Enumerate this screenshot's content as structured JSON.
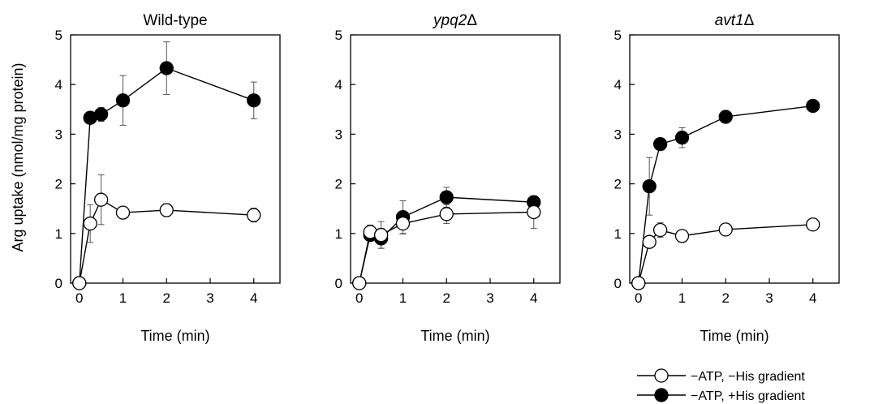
{
  "chart_data": [
    {
      "type": "line",
      "title": "Wild-type",
      "title_italic": false,
      "title_suffix": "",
      "xlabel": "Time (min)",
      "ylabel": "Arg uptake (nmol/mg protein)",
      "xlim": [
        -0.2,
        4.6
      ],
      "ylim": [
        0,
        5
      ],
      "xticks": [
        0,
        1,
        2,
        3,
        4
      ],
      "yticks": [
        0,
        1,
        2,
        3,
        4,
        5
      ],
      "grid": false,
      "series": [
        {
          "name": "−ATP, −His gradient",
          "marker": "open-circle",
          "x": [
            0,
            0.25,
            0.5,
            1,
            2,
            4
          ],
          "y": [
            0,
            1.2,
            1.68,
            1.42,
            1.47,
            1.37
          ],
          "err": [
            0,
            0.38,
            0.5,
            0.06,
            0.13,
            0.14
          ]
        },
        {
          "name": "−ATP, +His gradient",
          "marker": "filled-circle",
          "x": [
            0,
            0.25,
            0.5,
            1,
            2,
            4
          ],
          "y": [
            0,
            3.33,
            3.4,
            3.68,
            4.33,
            3.68
          ],
          "err": [
            0,
            0.1,
            0.14,
            0.5,
            0.53,
            0.37
          ]
        }
      ]
    },
    {
      "type": "line",
      "title": "ypq2",
      "title_italic": true,
      "title_suffix": "Δ",
      "xlabel": "Time (min)",
      "ylabel": "",
      "xlim": [
        -0.2,
        4.6
      ],
      "ylim": [
        0,
        5
      ],
      "xticks": [
        0,
        1,
        2,
        3,
        4
      ],
      "yticks": [
        0,
        1,
        2,
        3,
        4,
        5
      ],
      "grid": false,
      "series": [
        {
          "name": "−ATP, −His gradient",
          "marker": "open-circle",
          "x": [
            0,
            0.25,
            0.5,
            1,
            2,
            4
          ],
          "y": [
            0,
            1.03,
            0.97,
            1.2,
            1.39,
            1.43
          ],
          "err": [
            0,
            0.14,
            0.27,
            0.21,
            0.19,
            0.33
          ]
        },
        {
          "name": "−ATP, +His gradient",
          "marker": "filled-circle",
          "x": [
            0,
            0.25,
            0.5,
            1,
            2,
            4
          ],
          "y": [
            0,
            0.97,
            0.9,
            1.33,
            1.73,
            1.63
          ],
          "err": [
            0,
            0.1,
            0.2,
            0.33,
            0.2,
            0.07
          ]
        }
      ]
    },
    {
      "type": "line",
      "title": "avt1",
      "title_italic": true,
      "title_suffix": "Δ",
      "xlabel": "Time (min)",
      "ylabel": "",
      "xlim": [
        -0.2,
        4.6
      ],
      "ylim": [
        0,
        5
      ],
      "xticks": [
        0,
        1,
        2,
        3,
        4
      ],
      "yticks": [
        0,
        1,
        2,
        3,
        4,
        5
      ],
      "grid": false,
      "series": [
        {
          "name": "−ATP, −His gradient",
          "marker": "open-circle",
          "x": [
            0,
            0.25,
            0.5,
            1,
            2,
            4
          ],
          "y": [
            0,
            0.83,
            1.07,
            0.95,
            1.08,
            1.18
          ],
          "err": [
            0,
            0.08,
            0.15,
            0.05,
            0.12,
            0.05
          ]
        },
        {
          "name": "−ATP, +His gradient",
          "marker": "filled-circle",
          "x": [
            0,
            0.25,
            0.5,
            1,
            2,
            4
          ],
          "y": [
            0,
            1.95,
            2.8,
            2.93,
            3.35,
            3.57
          ],
          "err": [
            0,
            0.58,
            0.1,
            0.2,
            0.07,
            0.1
          ]
        }
      ]
    }
  ],
  "legend": {
    "placement": "bottom-right",
    "items": [
      {
        "label": "−ATP, −His gradient",
        "marker": "open-circle"
      },
      {
        "label": "−ATP, +His gradient",
        "marker": "filled-circle"
      }
    ]
  }
}
